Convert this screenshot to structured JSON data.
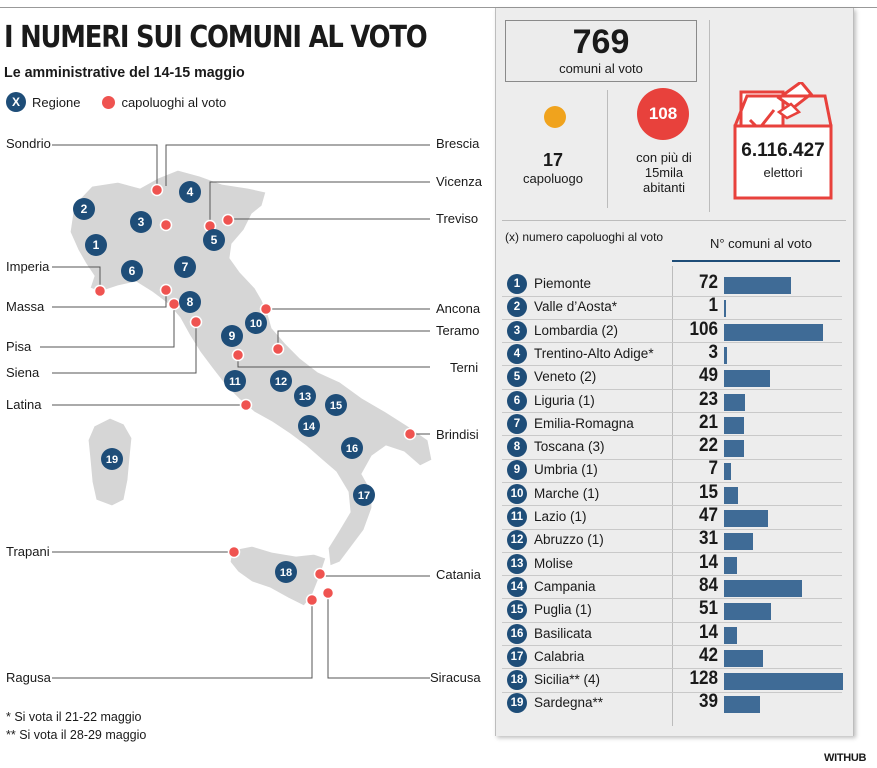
{
  "title": "I NUMERI SUI COMUNI AL VOTO",
  "subtitle": "Le amministrative del 14-15 maggio",
  "legend": {
    "region_symbol": "X",
    "region_label": "Regione",
    "capital_label": "capoluoghi al voto"
  },
  "summary": {
    "total_value": "769",
    "total_label": "comuni al voto",
    "capoluogo_value": "17",
    "capoluogo_label": "capoluogo",
    "big_value": "108",
    "big_label_1": "con più di",
    "big_label_2": "15mila",
    "big_label_3": "abitanti",
    "electors_value": "6.116.427",
    "electors_label": "elettori"
  },
  "map_places": {
    "sondrio": "Sondrio",
    "brescia": "Brescia",
    "vicenza": "Vicenza",
    "treviso": "Treviso",
    "imperia": "Imperia",
    "massa": "Massa",
    "ancona": "Ancona",
    "teramo": "Teramo",
    "pisa": "Pisa",
    "siena": "Siena",
    "terni": "Terni",
    "latina": "Latina",
    "brindisi": "Brindisi",
    "trapani": "Trapani",
    "catania": "Catania",
    "ragusa": "Ragusa",
    "siracusa": "Siracusa"
  },
  "notes": {
    "note1": "* Si vota il 21-22 maggio",
    "note2": "** Si vota il 28-29 maggio"
  },
  "source": "WITHUB",
  "colors": {
    "region_badge": "#1e4d78",
    "capital_dot": "#ef5350",
    "bar": "#3f6b96",
    "orange_dot": "#f0a31d",
    "red_circle": "#e8413c",
    "map_land": "#d6d6d6"
  },
  "chart_data": {
    "type": "bar",
    "orientation": "horizontal",
    "header_left": "(x) numero capoluoghi al voto",
    "header_right": "N° comuni al voto",
    "rows": [
      {
        "n": "1",
        "name": "Piemonte",
        "value": 72
      },
      {
        "n": "2",
        "name": "Valle d’Aosta*",
        "value": 1
      },
      {
        "n": "3",
        "name": "Lombardia (2)",
        "value": 106
      },
      {
        "n": "4",
        "name": "Trentino-Alto Adige*",
        "value": 3
      },
      {
        "n": "5",
        "name": "Veneto (2)",
        "value": 49
      },
      {
        "n": "6",
        "name": "Liguria (1)",
        "value": 23
      },
      {
        "n": "7",
        "name": "Emilia-Romagna",
        "value": 21
      },
      {
        "n": "8",
        "name": "Toscana (3)",
        "value": 22
      },
      {
        "n": "9",
        "name": "Umbria (1)",
        "value": 7
      },
      {
        "n": "10",
        "name": "Marche (1)",
        "value": 15
      },
      {
        "n": "11",
        "name": "Lazio (1)",
        "value": 47
      },
      {
        "n": "12",
        "name": "Abruzzo (1)",
        "value": 31
      },
      {
        "n": "13",
        "name": "Molise",
        "value": 14
      },
      {
        "n": "14",
        "name": "Campania",
        "value": 84
      },
      {
        "n": "15",
        "name": "Puglia (1)",
        "value": 51
      },
      {
        "n": "16",
        "name": "Basilicata",
        "value": 14
      },
      {
        "n": "17",
        "name": "Calabria",
        "value": 42
      },
      {
        "n": "18",
        "name": "Sicilia** (4)",
        "value": 128
      },
      {
        "n": "19",
        "name": "Sardegna**",
        "value": 39
      }
    ]
  }
}
